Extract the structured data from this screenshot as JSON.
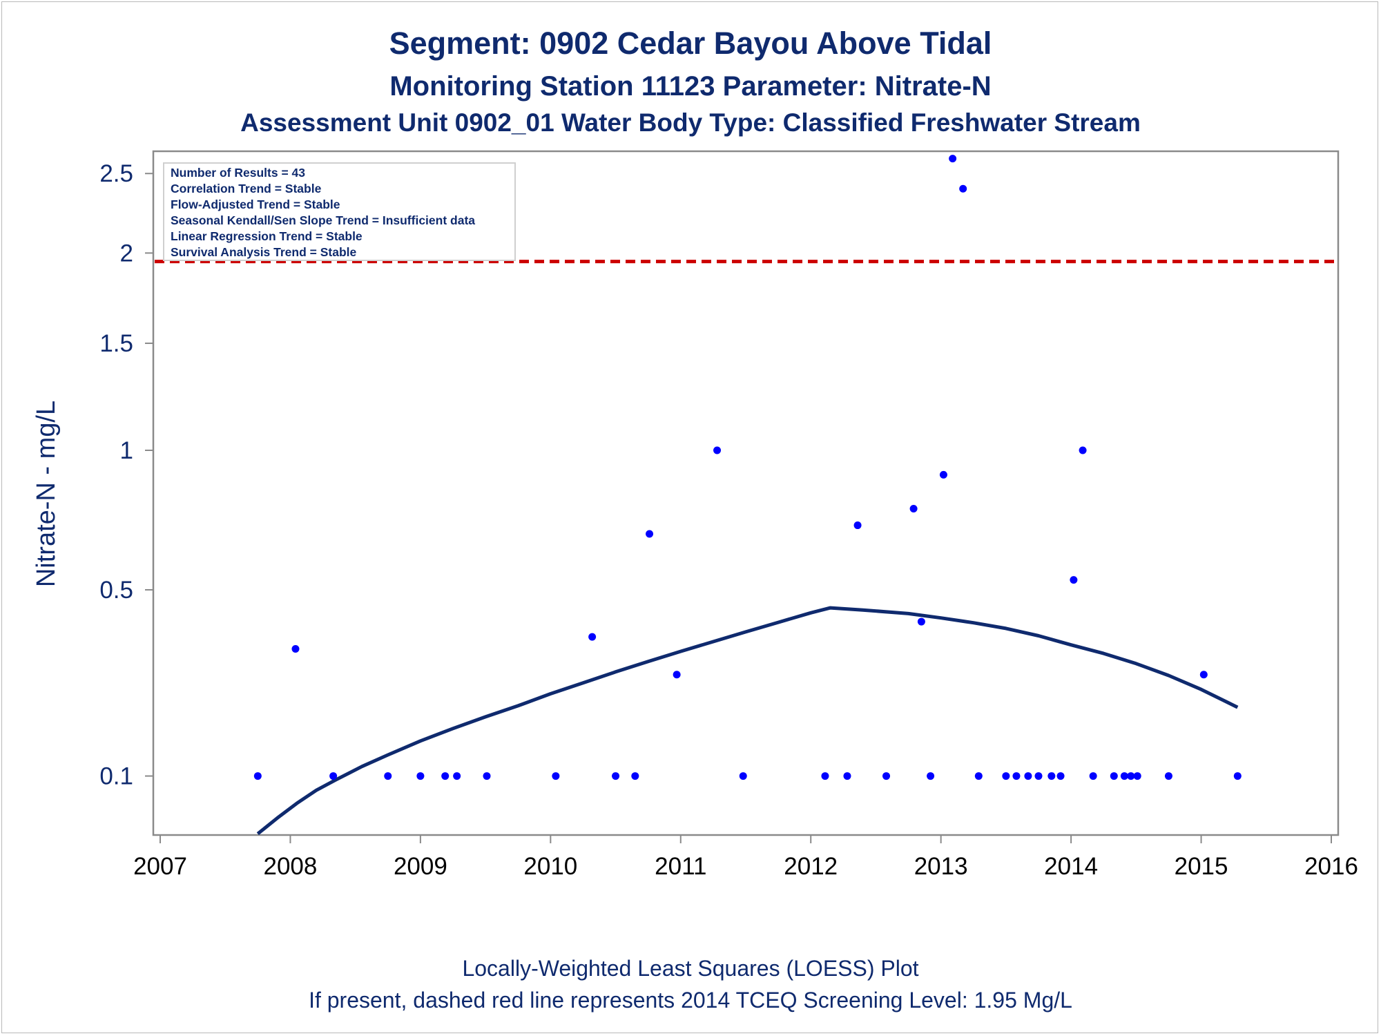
{
  "titles": [
    "Segment: 0902  Cedar Bayou Above Tidal",
    "Monitoring Station 11123 Parameter: Nitrate-N",
    "Assessment Unit 0902_01   Water Body Type: Classified Freshwater Stream"
  ],
  "footnotes": [
    "Locally-Weighted Least Squares (LOESS) Plot",
    "If present, dashed red line represents 2014 TCEQ Screening Level: 1.95 Mg/L"
  ],
  "inset_lines": [
    "Number of Results = 43",
    "Correlation Trend = Stable",
    "Flow-Adjusted Trend = Stable",
    "Seasonal Kendall/Sen Slope Trend = Insufficient data",
    "Linear Regression Trend = Stable",
    "Survival Analysis Trend = Stable"
  ],
  "colors": {
    "text": "#0f2a6e",
    "points": "#0000ff",
    "loess": "#0f2a6e",
    "screening_line": "#cc0000",
    "axis": "#8a8a8a"
  },
  "chart_data": {
    "type": "scatter",
    "ylabel": "Nitrate-N - mg/L",
    "xlabel": "",
    "xlim": [
      2007,
      2016
    ],
    "ylim_scale": "sqrt",
    "ylim": [
      0.037,
      2.65
    ],
    "x_ticks": [
      2007,
      2008,
      2009,
      2010,
      2011,
      2012,
      2013,
      2014,
      2015,
      2016
    ],
    "y_ticks": [
      0.1,
      0.5,
      1,
      1.5,
      2,
      2.5
    ],
    "y_tick_labels": [
      "0.1",
      "0.5",
      "1",
      "1.5",
      "2",
      "2.5"
    ],
    "grid": false,
    "legend": "none",
    "screening_level": 1.95,
    "observations": [
      {
        "x": 2007.75,
        "y": 0.1
      },
      {
        "x": 2008.04,
        "y": 0.34
      },
      {
        "x": 2008.33,
        "y": 0.1
      },
      {
        "x": 2008.75,
        "y": 0.1
      },
      {
        "x": 2009.0,
        "y": 0.1
      },
      {
        "x": 2009.19,
        "y": 0.1
      },
      {
        "x": 2009.28,
        "y": 0.1
      },
      {
        "x": 2009.51,
        "y": 0.1
      },
      {
        "x": 2010.04,
        "y": 0.1
      },
      {
        "x": 2010.32,
        "y": 0.37
      },
      {
        "x": 2010.5,
        "y": 0.1
      },
      {
        "x": 2010.65,
        "y": 0.1
      },
      {
        "x": 2010.76,
        "y": 0.68
      },
      {
        "x": 2010.97,
        "y": 0.28
      },
      {
        "x": 2011.28,
        "y": 1.0
      },
      {
        "x": 2011.48,
        "y": 0.1
      },
      {
        "x": 2012.11,
        "y": 0.1
      },
      {
        "x": 2012.28,
        "y": 0.1
      },
      {
        "x": 2012.36,
        "y": 0.71
      },
      {
        "x": 2012.58,
        "y": 0.1
      },
      {
        "x": 2012.79,
        "y": 0.77
      },
      {
        "x": 2012.85,
        "y": 0.41
      },
      {
        "x": 2012.92,
        "y": 0.1
      },
      {
        "x": 2013.02,
        "y": 0.9
      },
      {
        "x": 2013.09,
        "y": 2.6
      },
      {
        "x": 2013.17,
        "y": 2.4
      },
      {
        "x": 2013.29,
        "y": 0.1
      },
      {
        "x": 2013.5,
        "y": 0.1
      },
      {
        "x": 2013.58,
        "y": 0.1
      },
      {
        "x": 2013.67,
        "y": 0.1
      },
      {
        "x": 2013.75,
        "y": 0.1
      },
      {
        "x": 2013.85,
        "y": 0.1
      },
      {
        "x": 2013.92,
        "y": 0.1
      },
      {
        "x": 2014.02,
        "y": 0.53
      },
      {
        "x": 2014.09,
        "y": 1.0
      },
      {
        "x": 2014.17,
        "y": 0.1
      },
      {
        "x": 2014.33,
        "y": 0.1
      },
      {
        "x": 2014.41,
        "y": 0.1
      },
      {
        "x": 2014.46,
        "y": 0.1
      },
      {
        "x": 2014.51,
        "y": 0.1
      },
      {
        "x": 2014.75,
        "y": 0.1
      },
      {
        "x": 2015.02,
        "y": 0.28
      },
      {
        "x": 2015.28,
        "y": 0.1
      }
    ],
    "loess_curve": [
      {
        "x": 2007.75,
        "y": 0.038
      },
      {
        "x": 2007.9,
        "y": 0.052
      },
      {
        "x": 2008.05,
        "y": 0.067
      },
      {
        "x": 2008.2,
        "y": 0.082
      },
      {
        "x": 2008.35,
        "y": 0.095
      },
      {
        "x": 2008.55,
        "y": 0.113
      },
      {
        "x": 2008.75,
        "y": 0.13
      },
      {
        "x": 2009.0,
        "y": 0.152
      },
      {
        "x": 2009.25,
        "y": 0.173
      },
      {
        "x": 2009.5,
        "y": 0.194
      },
      {
        "x": 2009.75,
        "y": 0.215
      },
      {
        "x": 2010.0,
        "y": 0.239
      },
      {
        "x": 2010.25,
        "y": 0.262
      },
      {
        "x": 2010.5,
        "y": 0.286
      },
      {
        "x": 2010.75,
        "y": 0.31
      },
      {
        "x": 2011.0,
        "y": 0.334
      },
      {
        "x": 2011.25,
        "y": 0.358
      },
      {
        "x": 2011.5,
        "y": 0.383
      },
      {
        "x": 2011.75,
        "y": 0.408
      },
      {
        "x": 2012.0,
        "y": 0.434
      },
      {
        "x": 2012.15,
        "y": 0.448
      },
      {
        "x": 2012.4,
        "y": 0.442
      },
      {
        "x": 2012.75,
        "y": 0.432
      },
      {
        "x": 2013.0,
        "y": 0.42
      },
      {
        "x": 2013.25,
        "y": 0.407
      },
      {
        "x": 2013.5,
        "y": 0.392
      },
      {
        "x": 2013.75,
        "y": 0.373
      },
      {
        "x": 2014.0,
        "y": 0.35
      },
      {
        "x": 2014.25,
        "y": 0.329
      },
      {
        "x": 2014.5,
        "y": 0.305
      },
      {
        "x": 2014.75,
        "y": 0.278
      },
      {
        "x": 2015.0,
        "y": 0.248
      },
      {
        "x": 2015.28,
        "y": 0.212
      }
    ]
  }
}
